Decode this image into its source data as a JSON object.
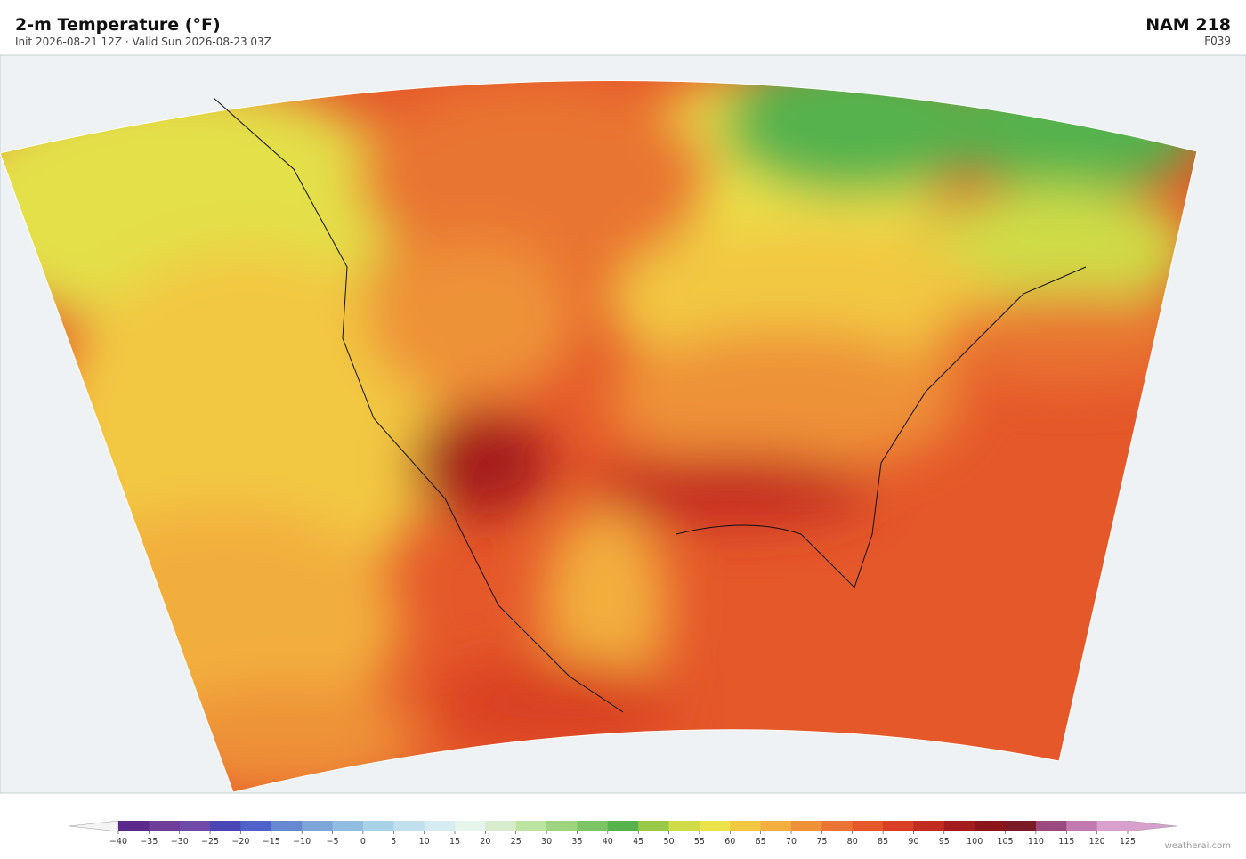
{
  "header": {
    "title": "2-m Temperature  (°F)",
    "subtitle": "Init 2026-08-21 12Z  ·  Valid Sun 2026-08-23 03Z",
    "model": "NAM  218",
    "forecast_hour": "F039"
  },
  "colorbar": {
    "ticks": [
      {
        "value": -40,
        "label": "−40"
      },
      {
        "value": -35,
        "label": "−35"
      },
      {
        "value": -30,
        "label": "−30"
      },
      {
        "value": -25,
        "label": "−25"
      },
      {
        "value": -20,
        "label": "−20"
      },
      {
        "value": -15,
        "label": "−15"
      },
      {
        "value": -10,
        "label": "−10"
      },
      {
        "value": -5,
        "label": "−5"
      },
      0,
      5,
      10,
      15,
      20,
      25,
      30,
      35,
      40,
      45,
      50,
      55,
      60,
      65,
      70,
      75,
      80,
      85,
      90,
      95,
      100,
      105,
      110,
      115,
      120,
      125
    ],
    "colors": [
      "#5b2a8c",
      "#6e3d9a",
      "#6f4aa8",
      "#4a47b5",
      "#4f62c8",
      "#6688d0",
      "#7ea5d8",
      "#90bde0",
      "#a8d2e8",
      "#c0e0ee",
      "#d5ecf2",
      "#e6f4ec",
      "#d6eccc",
      "#bde3a0",
      "#9fd47f",
      "#7cc466",
      "#55b24d",
      "#9ac94a",
      "#cfdc47",
      "#ece34a",
      "#f2c843",
      "#f2ae3e",
      "#ee9239",
      "#e97433",
      "#e5582a",
      "#d94024",
      "#c32c20",
      "#a51c1e",
      "#8c1519",
      "#7a1a25",
      "#9a4a7e",
      "#c07ab0",
      "#d8a0cc"
    ],
    "under_color": "#f4f4f4",
    "over_color": "#d8a0cc"
  },
  "footer": {
    "credit": "weatherai.com"
  }
}
